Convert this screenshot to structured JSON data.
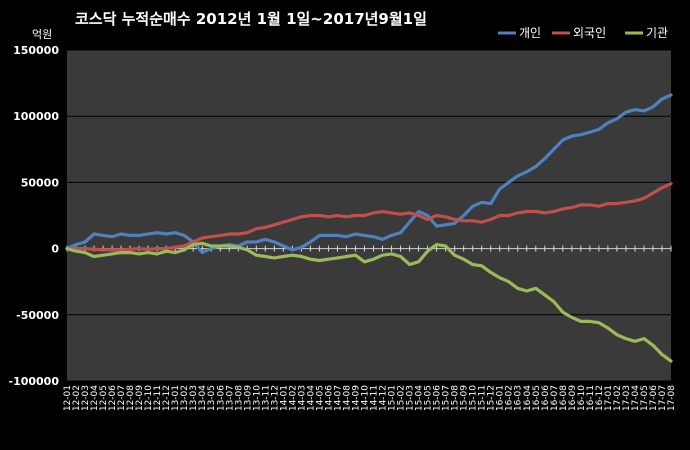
{
  "chart_data": {
    "type": "line",
    "title": "코스닥  누적순매수 2012년 1월 1일~2017년9월1일",
    "ylabel": "억원",
    "ylim": [
      -100000,
      150000
    ],
    "yticks": [
      150000,
      100000,
      50000,
      0,
      -50000,
      -100000
    ],
    "grid": true,
    "legend_position": "top-right",
    "x_start": "12-01",
    "x_end": "17-08",
    "x_ticks": [
      "12-01",
      "12-02",
      "12-03",
      "12-04",
      "12-05",
      "12-06",
      "12-07",
      "12-08",
      "12-09",
      "12-10",
      "12-11",
      "12-12",
      "13-01",
      "13-02",
      "13-03",
      "13-04",
      "13-05",
      "13-06",
      "13-07",
      "13-08",
      "13-09",
      "13-10",
      "13-11",
      "13-12",
      "14-01",
      "14-02",
      "14-03",
      "14-04",
      "14-05",
      "14-06",
      "14-07",
      "14-08",
      "14-09",
      "14-10",
      "14-11",
      "14-12",
      "15-01",
      "15-02",
      "15-03",
      "15-04",
      "15-05",
      "15-06",
      "15-07",
      "15-08",
      "15-09",
      "15-10",
      "15-11",
      "15-12",
      "16-01",
      "16-02",
      "16-03",
      "16-04",
      "16-05",
      "16-06",
      "16-07",
      "16-08",
      "16-09",
      "16-10",
      "16-11",
      "16-12",
      "17-01",
      "17-02",
      "17-03",
      "17-04",
      "17-05",
      "17-06",
      "17-07",
      "17-08"
    ],
    "x": [
      "12-01",
      "12-02",
      "12-03",
      "12-04",
      "12-05",
      "12-06",
      "12-07",
      "12-08",
      "12-09",
      "12-10",
      "12-11",
      "12-12",
      "13-01",
      "13-02",
      "13-03",
      "13-04",
      "13-05",
      "13-06",
      "13-07",
      "13-08",
      "13-09",
      "13-10",
      "13-11",
      "13-12",
      "14-01",
      "14-02",
      "14-03",
      "14-04",
      "14-05",
      "14-06",
      "14-07",
      "14-08",
      "14-09",
      "14-10",
      "14-11",
      "14-12",
      "15-01",
      "15-02",
      "15-03",
      "15-04",
      "15-05",
      "15-06",
      "15-07",
      "15-08",
      "15-09",
      "15-10",
      "15-11",
      "15-12",
      "16-01",
      "16-02",
      "16-03",
      "16-04",
      "16-05",
      "16-06",
      "16-07",
      "16-08",
      "16-09",
      "16-10",
      "16-11",
      "16-12",
      "17-01",
      "17-02",
      "17-03",
      "17-04",
      "17-05",
      "17-06",
      "17-07",
      "17-08"
    ],
    "series": [
      {
        "name": "개인",
        "color": "#4f81bd",
        "values": [
          0,
          3000,
          5000,
          11000,
          10000,
          9000,
          11000,
          10000,
          10000,
          11000,
          12000,
          11000,
          12000,
          10000,
          5000,
          -3000,
          0,
          2000,
          3000,
          2000,
          5000,
          5000,
          7000,
          5000,
          2000,
          -1000,
          1000,
          5000,
          10000,
          10000,
          10000,
          9000,
          11000,
          10000,
          9000,
          7000,
          10000,
          12000,
          20000,
          28000,
          25000,
          17000,
          18000,
          19000,
          25000,
          32000,
          35000,
          34000,
          45000,
          50000,
          55000,
          58000,
          62000,
          68000,
          75000,
          82000,
          85000,
          86000,
          88000,
          90000,
          95000,
          98000,
          103000,
          105000,
          104000,
          107000,
          113000,
          116000
        ]
      },
      {
        "name": "외국인",
        "color": "#c0504d",
        "values": [
          0,
          0,
          0,
          -500,
          -1000,
          -1000,
          -1000,
          -500,
          0,
          -500,
          0,
          0,
          1000,
          2000,
          5000,
          8000,
          9000,
          10000,
          11000,
          11000,
          12000,
          15000,
          16000,
          18000,
          20000,
          22000,
          24000,
          25000,
          25000,
          24000,
          25000,
          24000,
          25000,
          25000,
          27000,
          28000,
          27000,
          26000,
          27000,
          25000,
          22000,
          25000,
          24000,
          22000,
          21000,
          21000,
          20000,
          22000,
          25000,
          25000,
          27000,
          28000,
          28000,
          27000,
          28000,
          30000,
          31000,
          33000,
          33000,
          32000,
          34000,
          34000,
          35000,
          36000,
          38000,
          42000,
          46000,
          49000
        ]
      },
      {
        "name": "기관",
        "color": "#9bbb59",
        "values": [
          0,
          -2000,
          -3000,
          -6000,
          -5000,
          -4000,
          -3000,
          -3000,
          -4000,
          -3000,
          -4000,
          -2000,
          -3000,
          -1000,
          3000,
          4000,
          2000,
          2000,
          2000,
          1000,
          -1000,
          -5000,
          -6000,
          -7000,
          -6000,
          -5000,
          -6000,
          -8000,
          -9000,
          -8000,
          -7000,
          -6000,
          -5000,
          -10000,
          -8000,
          -5000,
          -4000,
          -6000,
          -12000,
          -10000,
          -2000,
          3000,
          2000,
          -5000,
          -8000,
          -12000,
          -13000,
          -18000,
          -22000,
          -25000,
          -30000,
          -32000,
          -30000,
          -35000,
          -40000,
          -48000,
          -52000,
          -55000,
          -55000,
          -56000,
          -60000,
          -65000,
          -68000,
          -70000,
          -68000,
          -73000,
          -80000,
          -85000
        ]
      }
    ]
  }
}
